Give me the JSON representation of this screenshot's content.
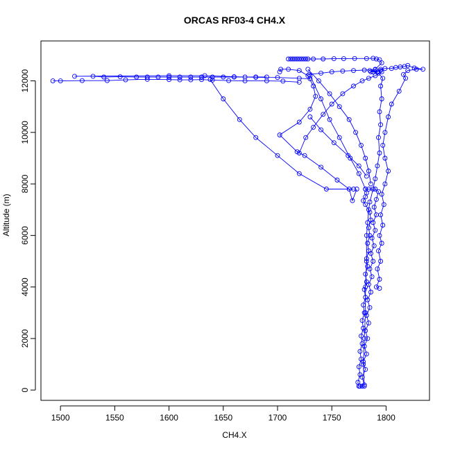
{
  "chart_data": {
    "type": "line",
    "title": "ORCAS RF03-4 CH4.X",
    "xlabel": "CH4.X",
    "ylabel": "Altitude (m)",
    "xlim": [
      1482,
      1840
    ],
    "ylim": [
      -400,
      13550
    ],
    "x_ticks": [
      1500,
      1550,
      1600,
      1650,
      1700,
      1750,
      1800
    ],
    "y_ticks": [
      0,
      2000,
      4000,
      6000,
      8000,
      10000,
      12000
    ],
    "grid": false,
    "legend": "none",
    "series_color": "#0000ff",
    "series": [
      {
        "points": [
          [
            1775,
            150
          ],
          [
            1774,
            300
          ],
          [
            1776,
            600
          ],
          [
            1775,
            900
          ],
          [
            1777,
            1200
          ],
          [
            1776,
            1500
          ],
          [
            1778,
            1800
          ],
          [
            1777,
            2100
          ],
          [
            1779,
            2400
          ],
          [
            1778,
            2700
          ],
          [
            1780,
            3000
          ],
          [
            1779,
            3300
          ],
          [
            1781,
            3600
          ],
          [
            1780,
            3900
          ],
          [
            1782,
            4200
          ],
          [
            1781,
            4500
          ],
          [
            1783,
            4800
          ],
          [
            1782,
            5100
          ],
          [
            1784,
            5400
          ],
          [
            1783,
            5700
          ],
          [
            1785,
            6000
          ],
          [
            1784,
            6300
          ],
          [
            1786,
            6600
          ],
          [
            1785,
            6900
          ],
          [
            1781,
            7200
          ],
          [
            1779,
            7350
          ],
          [
            1781,
            7500
          ],
          [
            1782,
            7650
          ],
          [
            1781,
            7800
          ],
          [
            1784,
            7800
          ],
          [
            1790,
            7800
          ],
          [
            1793,
            7700
          ],
          [
            1791,
            7400
          ],
          [
            1789,
            7100
          ],
          [
            1791,
            6800
          ],
          [
            1788,
            6500
          ],
          [
            1790,
            6200
          ],
          [
            1787,
            5900
          ],
          [
            1789,
            5600
          ],
          [
            1786,
            5300
          ],
          [
            1788,
            5000
          ],
          [
            1785,
            4700
          ],
          [
            1787,
            4400
          ],
          [
            1784,
            4100
          ],
          [
            1786,
            3800
          ],
          [
            1783,
            3500
          ],
          [
            1785,
            3200
          ],
          [
            1782,
            2900
          ],
          [
            1784,
            2600
          ],
          [
            1781,
            2300
          ],
          [
            1783,
            2000
          ],
          [
            1780,
            1700
          ],
          [
            1782,
            1400
          ],
          [
            1779,
            1100
          ],
          [
            1781,
            800
          ],
          [
            1778,
            500
          ],
          [
            1780,
            200
          ],
          [
            1778,
            150
          ],
          [
            1776,
            150
          ],
          [
            1775,
            150
          ]
        ]
      },
      {
        "points": [
          [
            1780,
            150
          ],
          [
            1779,
            1000
          ],
          [
            1780,
            2000
          ],
          [
            1781,
            3000
          ],
          [
            1781,
            4000
          ],
          [
            1782,
            5000
          ],
          [
            1782,
            6000
          ],
          [
            1783,
            6500
          ],
          [
            1784,
            7000
          ],
          [
            1785,
            7300
          ],
          [
            1788,
            7800
          ],
          [
            1790,
            8200
          ],
          [
            1792,
            8700
          ],
          [
            1794,
            9200
          ],
          [
            1793,
            9800
          ],
          [
            1795,
            10300
          ],
          [
            1794,
            10800
          ],
          [
            1796,
            11300
          ],
          [
            1795,
            11800
          ],
          [
            1797,
            12100
          ],
          [
            1793,
            12300
          ],
          [
            1788,
            12350
          ],
          [
            1785,
            12400
          ]
        ]
      },
      {
        "points": [
          [
            1773,
            7800
          ],
          [
            1769,
            7350
          ],
          [
            1766,
            7800
          ],
          [
            1755,
            8150
          ],
          [
            1740,
            8650
          ],
          [
            1725,
            9100
          ],
          [
            1718,
            9250
          ],
          [
            1702,
            9900
          ],
          [
            1720,
            10400
          ],
          [
            1730,
            10900
          ],
          [
            1735,
            11400
          ],
          [
            1733,
            11800
          ],
          [
            1728,
            12200
          ],
          [
            1720,
            12400
          ],
          [
            1710,
            12450
          ],
          [
            1703,
            12450
          ],
          [
            1702,
            12350
          ]
        ]
      },
      {
        "points": [
          [
            1730,
            12200
          ],
          [
            1740,
            11300
          ],
          [
            1748,
            10500
          ],
          [
            1757,
            9800
          ],
          [
            1767,
            9000
          ],
          [
            1775,
            8400
          ],
          [
            1781,
            7800
          ]
        ]
      },
      {
        "points": [
          [
            1690,
            12150
          ],
          [
            1680,
            12150
          ],
          [
            1670,
            12150
          ],
          [
            1660,
            12150
          ],
          [
            1650,
            12150
          ],
          [
            1640,
            12150
          ],
          [
            1630,
            12150
          ],
          [
            1620,
            12150
          ],
          [
            1610,
            12150
          ],
          [
            1600,
            12150
          ],
          [
            1590,
            12150
          ],
          [
            1580,
            12150
          ],
          [
            1570,
            12150
          ],
          [
            1555,
            12160
          ],
          [
            1540,
            12150
          ],
          [
            1530,
            12180
          ],
          [
            1513,
            12180
          ],
          [
            1600,
            12200
          ],
          [
            1633,
            12200
          ],
          [
            1660,
            12160
          ],
          [
            1680,
            12140
          ],
          [
            1700,
            12130
          ],
          [
            1720,
            12100
          ],
          [
            1730,
            12080
          ]
        ]
      },
      {
        "points": [
          [
            1493,
            12000
          ],
          [
            1500,
            12000
          ],
          [
            1520,
            12010
          ],
          [
            1543,
            12010
          ],
          [
            1560,
            12040
          ],
          [
            1580,
            12060
          ],
          [
            1600,
            12050
          ],
          [
            1610,
            12040
          ],
          [
            1620,
            12040
          ],
          [
            1630,
            12050
          ],
          [
            1640,
            12030
          ],
          [
            1655,
            12010
          ],
          [
            1670,
            12000
          ],
          [
            1690,
            12000
          ],
          [
            1705,
            11990
          ],
          [
            1720,
            11950
          ]
        ]
      },
      {
        "points": [
          [
            1638,
            12050
          ],
          [
            1650,
            11300
          ],
          [
            1665,
            10500
          ],
          [
            1680,
            9800
          ],
          [
            1700,
            9100
          ],
          [
            1720,
            8400
          ],
          [
            1745,
            7800
          ],
          [
            1770,
            7800
          ]
        ]
      },
      {
        "points": [
          [
            1710,
            12850
          ],
          [
            1712,
            12850
          ],
          [
            1714,
            12850
          ],
          [
            1716,
            12850
          ],
          [
            1718,
            12850
          ],
          [
            1720,
            12850
          ],
          [
            1722,
            12850
          ],
          [
            1724,
            12850
          ],
          [
            1726,
            12850
          ],
          [
            1728,
            12850
          ],
          [
            1733,
            12850
          ],
          [
            1742,
            12850
          ],
          [
            1752,
            12860
          ],
          [
            1761,
            12860
          ],
          [
            1771,
            12870
          ],
          [
            1782,
            12870
          ],
          [
            1788,
            12880
          ],
          [
            1791,
            12850
          ],
          [
            1794,
            12820
          ],
          [
            1796,
            12700
          ],
          [
            1790,
            12450
          ],
          [
            1786,
            12350
          ],
          [
            1792,
            12350
          ],
          [
            1795,
            12450
          ],
          [
            1799,
            12480
          ],
          [
            1805,
            12480
          ],
          [
            1809,
            12520
          ],
          [
            1813,
            12540
          ],
          [
            1817,
            12560
          ],
          [
            1820,
            12600
          ],
          [
            1826,
            12500
          ],
          [
            1834,
            12450
          ],
          [
            1828,
            12450
          ],
          [
            1820,
            12400
          ],
          [
            1816,
            12250
          ],
          [
            1818,
            12100
          ],
          [
            1812,
            11600
          ],
          [
            1805,
            11100
          ],
          [
            1802,
            10600
          ],
          [
            1799,
            10000
          ],
          [
            1797,
            9500
          ],
          [
            1799,
            9000
          ],
          [
            1802,
            8500
          ],
          [
            1799,
            8000
          ],
          [
            1796,
            7600
          ],
          [
            1798,
            7200
          ],
          [
            1795,
            6800
          ],
          [
            1797,
            6400
          ],
          [
            1794,
            6000
          ],
          [
            1796,
            5700
          ],
          [
            1793,
            5400
          ],
          [
            1795,
            5000
          ],
          [
            1792,
            4700
          ],
          [
            1794,
            4300
          ],
          [
            1791,
            4000
          ],
          [
            1794,
            3950
          ]
        ]
      },
      {
        "points": [
          [
            1729,
            12250
          ],
          [
            1740,
            12300
          ],
          [
            1750,
            12350
          ],
          [
            1760,
            12380
          ],
          [
            1770,
            12400
          ],
          [
            1780,
            12420
          ],
          [
            1790,
            12430
          ],
          [
            1795,
            12400
          ]
        ]
      },
      {
        "points": [
          [
            1728,
            12450
          ],
          [
            1738,
            12000
          ],
          [
            1748,
            11500
          ],
          [
            1757,
            11000
          ],
          [
            1766,
            10500
          ],
          [
            1772,
            10000
          ],
          [
            1777,
            9500
          ],
          [
            1781,
            9000
          ],
          [
            1784,
            8500
          ],
          [
            1786,
            8000
          ]
        ]
      },
      {
        "points": [
          [
            1796,
            12350
          ],
          [
            1790,
            12200
          ],
          [
            1784,
            12100
          ],
          [
            1778,
            12000
          ],
          [
            1770,
            11800
          ],
          [
            1760,
            11500
          ],
          [
            1750,
            11100
          ],
          [
            1742,
            10700
          ],
          [
            1733,
            10200
          ],
          [
            1726,
            9800
          ],
          [
            1720,
            9200
          ]
        ]
      },
      {
        "points": [
          [
            1730,
            10600
          ],
          [
            1740,
            10100
          ],
          [
            1752,
            9600
          ],
          [
            1765,
            9100
          ],
          [
            1775,
            8700
          ],
          [
            1782,
            8300
          ]
        ]
      }
    ]
  }
}
